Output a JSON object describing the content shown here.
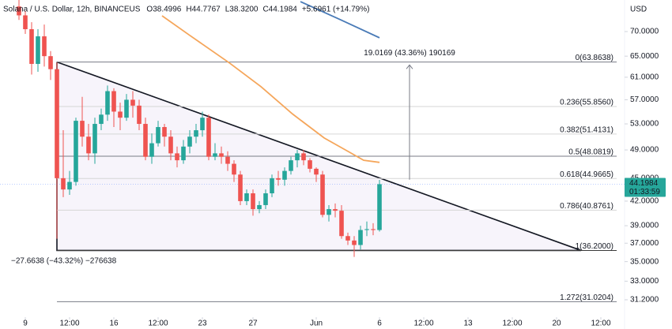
{
  "chart_data": {
    "type": "candlestick",
    "symbol": "Solana / U.S. Dollar, 12h, BINANCEUS",
    "ohlc_header": [
      "O38.4996",
      "H44.7767",
      "L38.3200",
      "C44.1984",
      "+5.6961 (+14.79%)"
    ],
    "currency": "USD",
    "log_scale": true,
    "up_color": "#26a69a",
    "down_color": "#ef5350",
    "xlim": [
      -2,
      47.375
    ],
    "ylim": [
      29.75,
      76.98
    ],
    "xticks": [
      {
        "value": 0,
        "label": "9"
      },
      {
        "value": 3.5,
        "label": "12:00"
      },
      {
        "value": 7,
        "label": "16"
      },
      {
        "value": 10.5,
        "label": "12:00"
      },
      {
        "value": 14,
        "label": "23"
      },
      {
        "value": 18,
        "label": "27"
      },
      {
        "value": 23,
        "label": "Jun"
      },
      {
        "value": 28,
        "label": "6"
      },
      {
        "value": 31.5,
        "label": "12:00"
      },
      {
        "value": 35,
        "label": "13"
      },
      {
        "value": 38.5,
        "label": "12:00"
      },
      {
        "value": 42,
        "label": "20"
      },
      {
        "value": 45.5,
        "label": "12:00"
      }
    ],
    "yticks": [
      {
        "value": 70,
        "label": "70.0000"
      },
      {
        "value": 65,
        "label": "65.0000"
      },
      {
        "value": 61,
        "label": "61.0000"
      },
      {
        "value": 57,
        "label": "57.0000"
      },
      {
        "value": 53,
        "label": "53.0000"
      },
      {
        "value": 49,
        "label": "49.0000"
      },
      {
        "value": 45,
        "label": "45.0000"
      },
      {
        "value": 42,
        "label": "42.0000"
      },
      {
        "value": 39,
        "label": "39.0000"
      },
      {
        "value": 37,
        "label": "37.0000"
      },
      {
        "value": 35,
        "label": "35.0000"
      },
      {
        "value": 33,
        "label": "33.0000"
      },
      {
        "value": 31.2,
        "label": "31.2000"
      }
    ],
    "x": [
      -0.5,
      0,
      0.5,
      1,
      1.5,
      2,
      2.5,
      3,
      3.5,
      4,
      4.5,
      5,
      5.5,
      6,
      6.5,
      7,
      7.5,
      8,
      8.5,
      9,
      9.5,
      10,
      10.5,
      11,
      11.5,
      12,
      12.5,
      13,
      13.5,
      14,
      14.5,
      15,
      15.5,
      16,
      16.5,
      17,
      17.5,
      18,
      18.5,
      19,
      19.5,
      20,
      20.5,
      21,
      21.5,
      22,
      22.5,
      23,
      23.5,
      24,
      24.5,
      25,
      25.5,
      26,
      26.5,
      27,
      27.5,
      28
    ],
    "open": [
      75.5,
      73.5,
      70.5,
      63.5,
      69,
      65,
      62.5,
      45,
      43.5,
      44.5,
      53.5,
      51,
      48.5,
      53,
      54.5,
      58.5,
      55,
      54,
      57,
      56,
      53,
      48,
      50,
      52.5,
      51,
      48.5,
      47.5,
      49.5,
      51,
      52,
      54,
      48,
      48.5,
      48,
      47,
      45.5,
      42,
      43,
      41,
      41.5,
      43,
      45,
      44.8,
      46,
      47.5,
      48.5,
      47.5,
      46.3,
      45.5,
      40.3,
      41,
      40.8,
      37.8,
      37.3,
      36.8,
      38.5,
      38.6,
      38.4996
    ],
    "high": [
      77,
      74.5,
      72,
      70.5,
      71.5,
      66,
      63.8,
      52,
      46,
      54,
      57.5,
      53,
      54,
      55.5,
      59.5,
      59,
      56.5,
      58,
      58.5,
      57,
      54,
      51.5,
      53.5,
      53,
      52,
      49.5,
      50.5,
      52,
      53,
      55,
      54.5,
      50,
      49.5,
      48.8,
      47.5,
      46,
      43.5,
      43.5,
      42,
      43.5,
      45.5,
      46,
      46.5,
      48,
      49,
      49,
      47.8,
      46.5,
      46,
      41.5,
      41.7,
      41.5,
      38.2,
      37.8,
      39,
      39.5,
      39.3,
      44.7767
    ],
    "low": [
      72.5,
      69.5,
      61.5,
      62,
      63,
      60.5,
      37.5,
      42.5,
      42.8,
      44,
      49.5,
      47.5,
      47,
      52,
      53.5,
      52.5,
      52,
      53.5,
      54,
      52,
      47.5,
      47,
      49.5,
      49.5,
      47.5,
      46.5,
      47,
      48.5,
      50,
      51,
      47.5,
      47.5,
      47,
      46,
      44.5,
      41.5,
      41.5,
      40.2,
      40.5,
      41,
      42.5,
      44,
      44,
      45.5,
      46.5,
      46.8,
      45.8,
      44.5,
      40,
      39.5,
      40,
      37.5,
      36.8,
      35.5,
      36.3,
      37.8,
      37.9,
      38.32
    ],
    "close": [
      73.5,
      70.5,
      63.5,
      69,
      65,
      62.5,
      45,
      43.5,
      44.5,
      53.5,
      51,
      48.5,
      53,
      54.5,
      58.5,
      55,
      54,
      57,
      56,
      53,
      48,
      50,
      52.5,
      51,
      48.5,
      47.5,
      49.5,
      51,
      52,
      54,
      48,
      48.5,
      48,
      47,
      45.5,
      42,
      43,
      41,
      41.5,
      43,
      45,
      44.8,
      46,
      47.5,
      48.5,
      47.5,
      46.3,
      45.5,
      40.3,
      41,
      40.8,
      37.8,
      37.3,
      36.8,
      38.5,
      38.6,
      38.5,
      44.1984
    ],
    "last_price_label": "44.1984",
    "countdown": "01:33:59",
    "moving_averages": [
      {
        "color": "#f5a65b",
        "x": [
          10.81,
          13,
          16.13,
          18.63,
          21.13,
          23.63,
          25.5,
          26.75,
          28
        ],
        "values": [
          73.4,
          69.2,
          63.7,
          59.3,
          54.6,
          50.8,
          48.8,
          47.5,
          47.2
        ]
      },
      {
        "color": "#4a7bb7",
        "x": [
          21.75,
          24.875,
          28
        ],
        "values": [
          76.6,
          72.6,
          68.7
        ]
      }
    ],
    "fib_levels": [
      {
        "value": 63.8638,
        "label": "0(63.8638)",
        "color": "#787b86"
      },
      {
        "value": 55.856,
        "label": "0.236(55.8560)",
        "color": "#d6d6d6"
      },
      {
        "value": 51.4131,
        "label": "0.382(51.4131)",
        "color": "#d6d6d6"
      },
      {
        "value": 48.0819,
        "label": "0.5(48.0819)",
        "color": "#787b86"
      },
      {
        "value": 44.9665,
        "label": "0.618(44.9665)",
        "color": "#d6d6d6"
      },
      {
        "value": 40.8761,
        "label": "0.786(40.8761)",
        "color": "#d6d6d6"
      },
      {
        "value": 36.2,
        "label": "1(36.2000)",
        "color": "#3a3a3a"
      },
      {
        "value": 31.0204,
        "label": "1.272(31.0204)",
        "color": "#787b86"
      }
    ],
    "fib_x": [
      2.5,
      46.75
    ],
    "triangle": {
      "x": [
        2.5,
        43.94,
        2.5
      ],
      "values": [
        63.8638,
        36.2,
        36.2
      ]
    },
    "measure_up": {
      "x": 30.375,
      "from": 44.8,
      "to": 63.3,
      "label": "19.0169 (43.36%) 190169"
    },
    "measure_down_label": "−27.6638 (−43.32%) −276638"
  }
}
